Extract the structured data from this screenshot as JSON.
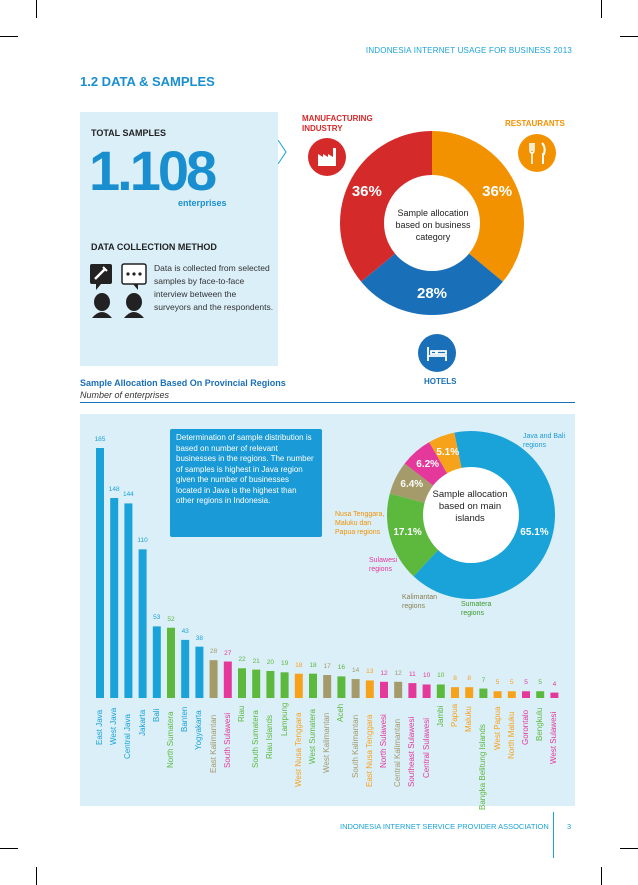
{
  "header": {
    "top_title": "INDONESIA INTERNET USAGE FOR BUSINESS 2013",
    "section_title": "1.2 DATA & SAMPLES",
    "footer_org": "INDONESIA INTERNET SERVICE PROVIDER ASSOCIATION",
    "page_number": "3"
  },
  "samples": {
    "total_label": "TOTAL SAMPLES",
    "total_value": "1.108",
    "unit": "enterprises",
    "method_label": "DATA COLLECTION METHOD",
    "method_text": "Data is collected from selected samples by face-to-face interview between the surveyors and the respondents."
  },
  "category_chart": {
    "center_label": "Sample allocation based on business category",
    "manufacturing_label": "MANUFACTURING INDUSTRY",
    "restaurants_label": "RESTAURANTS",
    "hotels_label": "HOTELS"
  },
  "regions": {
    "title": "Sample Allocation Based On Provincial Regions",
    "subtitle": "Number of enterprises",
    "note": "Determination of sample distribution is based on number of relevant businesses in the regions. The number of samples is highest in Java region given the number of businesses located in Java is the highest than other regions in Indonesia."
  },
  "islands_chart": {
    "center_label": "Sample allocation based on main islands",
    "java_label": "Java and Bali regions",
    "nusa_label": "Nusa Tenggara, Maluku dan Papua regions",
    "sulawesi_label": "Sulawesi regions",
    "kalimantan_label": "Kalimantan regions",
    "sumatera_label": "Sumatera regions"
  },
  "chart_data": [
    {
      "type": "pie",
      "labels": [
        "MANUFACTURING INDUSTRY",
        "RESTAURANTS",
        "HOTELS"
      ],
      "values": [
        36,
        36,
        28
      ],
      "value_labels": [
        "36%",
        "36%",
        "28%"
      ],
      "colors": [
        "#d52a2a",
        "#f39200",
        "#1a6fb9"
      ]
    },
    {
      "type": "bar",
      "categories": [
        "East Java",
        "West Java",
        "Central Java",
        "Jakarta",
        "Bali",
        "North Sumatera",
        "Banten",
        "Yogyakarta",
        "East Kalimantan",
        "South Sulawesi",
        "Riau",
        "South Sumatera",
        "Riau Islands",
        "Lampung",
        "West Nusa Tenggara",
        "West Sumatera",
        "West Kalimantan",
        "Aceh",
        "South Kalimantan",
        "East Nusa Tenggara",
        "North Sulawesi",
        "Central Kalimantan",
        "Southeast Sulawesi",
        "Central Sulawesi",
        "Jambi",
        "Papua",
        "Maluku",
        "Bangka Belitung Islands",
        "West Papua",
        "North Maluku",
        "Gorontalo",
        "Bengkulu",
        "West Sulawesi"
      ],
      "values": [
        185,
        148,
        144,
        110,
        53,
        52,
        43,
        38,
        28,
        27,
        22,
        21,
        20,
        19,
        18,
        18,
        17,
        16,
        14,
        13,
        12,
        12,
        11,
        10,
        10,
        8,
        8,
        7,
        5,
        5,
        5,
        5,
        4
      ],
      "colors": [
        "#1aa3d9",
        "#1aa3d9",
        "#1aa3d9",
        "#1aa3d9",
        "#1aa3d9",
        "#5cb93e",
        "#1aa3d9",
        "#1aa3d9",
        "#a59a6a",
        "#e4399a",
        "#5cb93e",
        "#5cb93e",
        "#5cb93e",
        "#5cb93e",
        "#f7a21b",
        "#5cb93e",
        "#a59a6a",
        "#5cb93e",
        "#a59a6a",
        "#f7a21b",
        "#e4399a",
        "#a59a6a",
        "#e4399a",
        "#e4399a",
        "#5cb93e",
        "#f7a21b",
        "#f7a21b",
        "#5cb93e",
        "#f7a21b",
        "#f7a21b",
        "#e4399a",
        "#5cb93e",
        "#e4399a"
      ],
      "ylim": [
        0,
        185
      ]
    },
    {
      "type": "pie",
      "labels": [
        "Java and Bali regions",
        "Sumatera regions",
        "Kalimantan regions",
        "Sulawesi regions",
        "Nusa Tenggara, Maluku dan Papua regions"
      ],
      "values": [
        65.1,
        17.1,
        6.4,
        6.2,
        5.1
      ],
      "value_labels": [
        "65.1%",
        "17.1%",
        "6.4%",
        "6.2%",
        "5.1%"
      ],
      "colors": [
        "#1aa3d9",
        "#5cb93e",
        "#a59a6a",
        "#e4399a",
        "#f7a21b"
      ]
    }
  ]
}
